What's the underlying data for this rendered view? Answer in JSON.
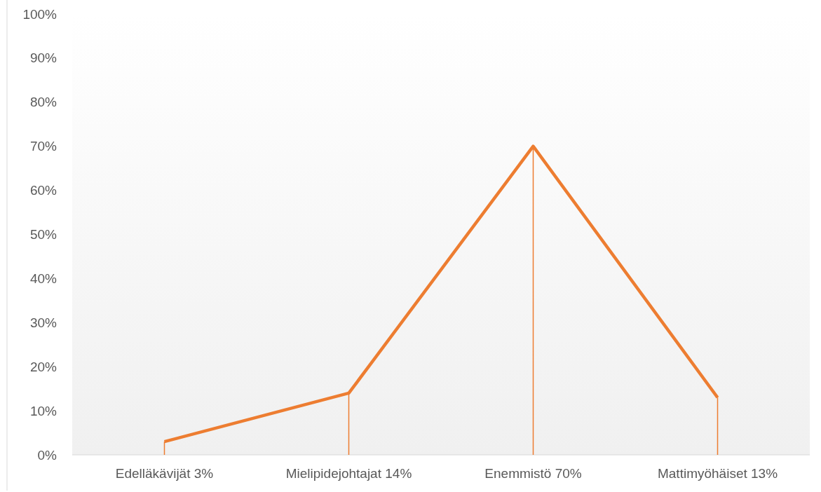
{
  "chart_data": {
    "type": "line",
    "categories": [
      "Edelläkävijät 3%",
      "Mielipidejohtajat 14%",
      "Enemmistö 70%",
      "Mattimyöhäiset 13%"
    ],
    "series": [
      {
        "color": "#ed7d31",
        "values": [
          3,
          14,
          70,
          13
        ],
        "errors": [
          [
            0,
            3
          ],
          [
            0,
            14
          ],
          [
            0,
            70
          ],
          [
            0,
            13
          ]
        ]
      }
    ],
    "ylim": [
      0,
      100
    ],
    "yticks": [
      {
        "value": 0,
        "label": "0%"
      },
      {
        "value": 10,
        "label": "10%"
      },
      {
        "value": 20,
        "label": "20%"
      },
      {
        "value": 30,
        "label": "30%"
      },
      {
        "value": 40,
        "label": "40%"
      },
      {
        "value": 50,
        "label": "50%"
      },
      {
        "value": 60,
        "label": "60%"
      },
      {
        "value": 70,
        "label": "70%"
      },
      {
        "value": 80,
        "label": "80%"
      },
      {
        "value": 90,
        "label": "90%"
      },
      {
        "value": 100,
        "label": "100%"
      }
    ],
    "grid": false
  }
}
